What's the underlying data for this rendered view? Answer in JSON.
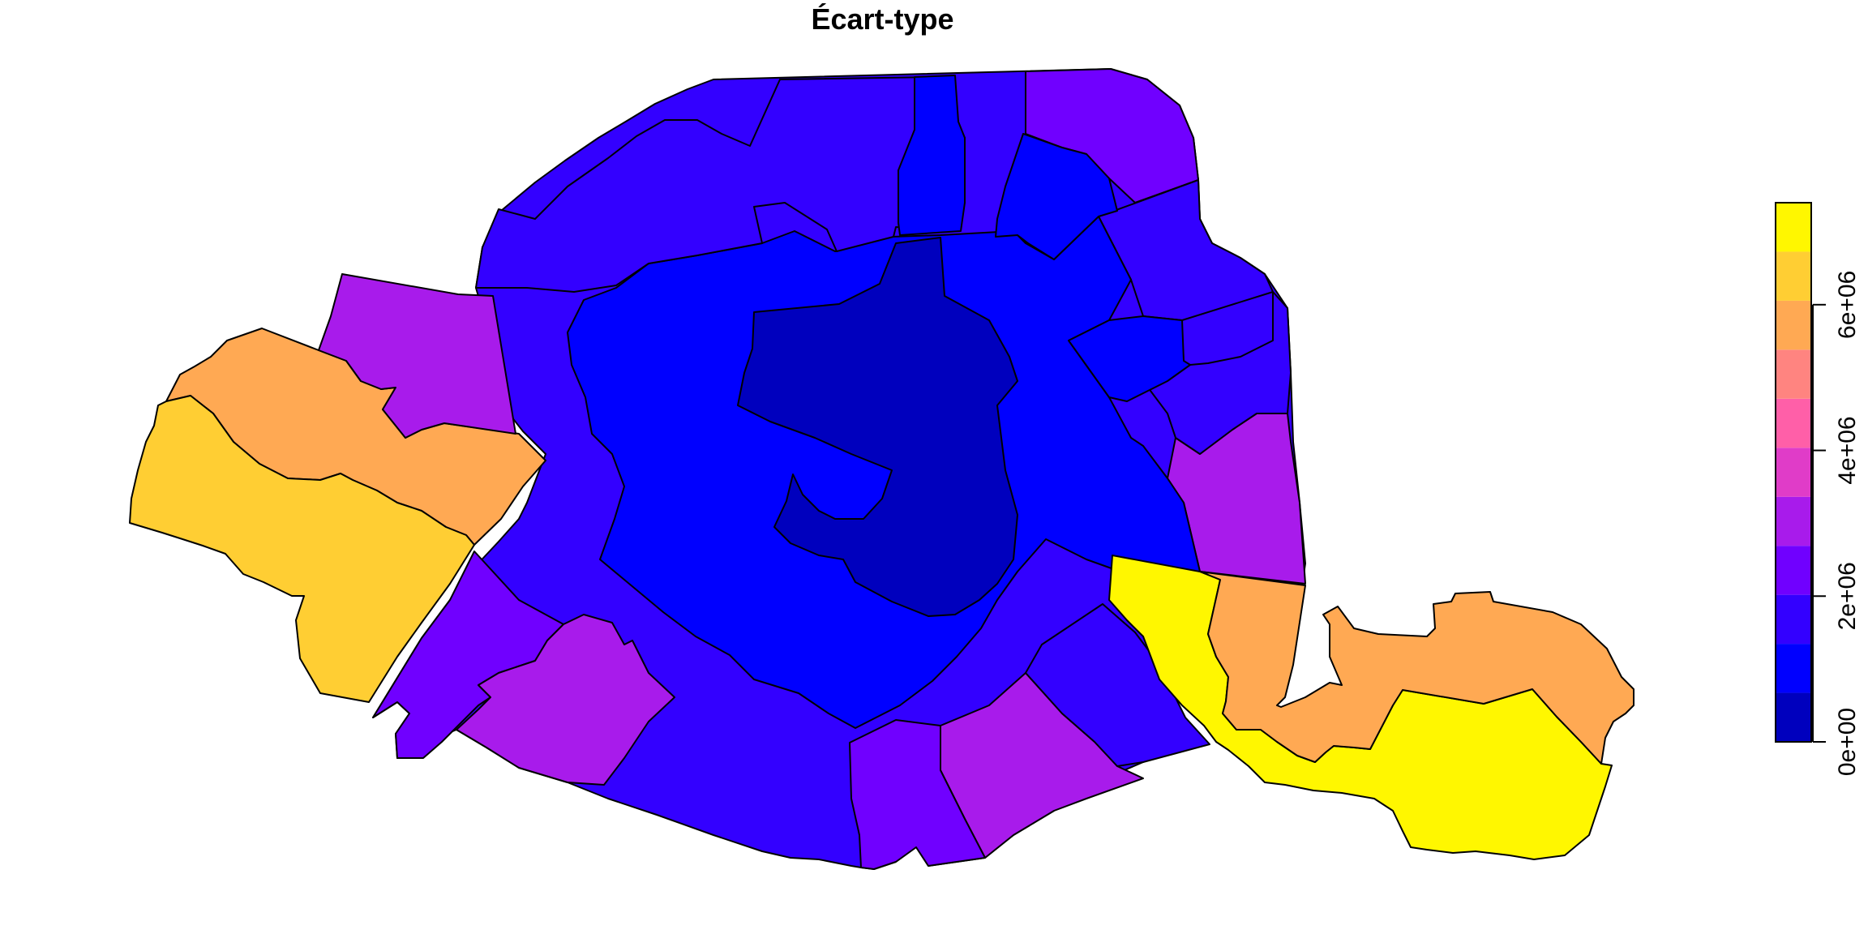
{
  "title": "Écart-type",
  "legend": {
    "min": 0,
    "max": 7400000,
    "ticks": [
      {
        "value": 0,
        "label": "0e+00"
      },
      {
        "value": 2000000,
        "label": "2e+06"
      },
      {
        "value": 4000000,
        "label": "4e+06"
      },
      {
        "value": 6000000,
        "label": "6e+06"
      }
    ],
    "colors": [
      "#0000BE",
      "#0000FF",
      "#3300FF",
      "#7000FF",
      "#A81BEB",
      "#E03CC8",
      "#FF5FA8",
      "#FF8480",
      "#FFA953",
      "#FFCE33",
      "#FFF700"
    ]
  },
  "colors": {
    "c0": "#0000BE",
    "c1": "#0000FF",
    "c2": "#3300FF",
    "c3": "#7000FF",
    "c4": "#A81BEB",
    "c8": "#FFA953",
    "c9": "#FFCE33",
    "c10": "#FFF700"
  }
}
